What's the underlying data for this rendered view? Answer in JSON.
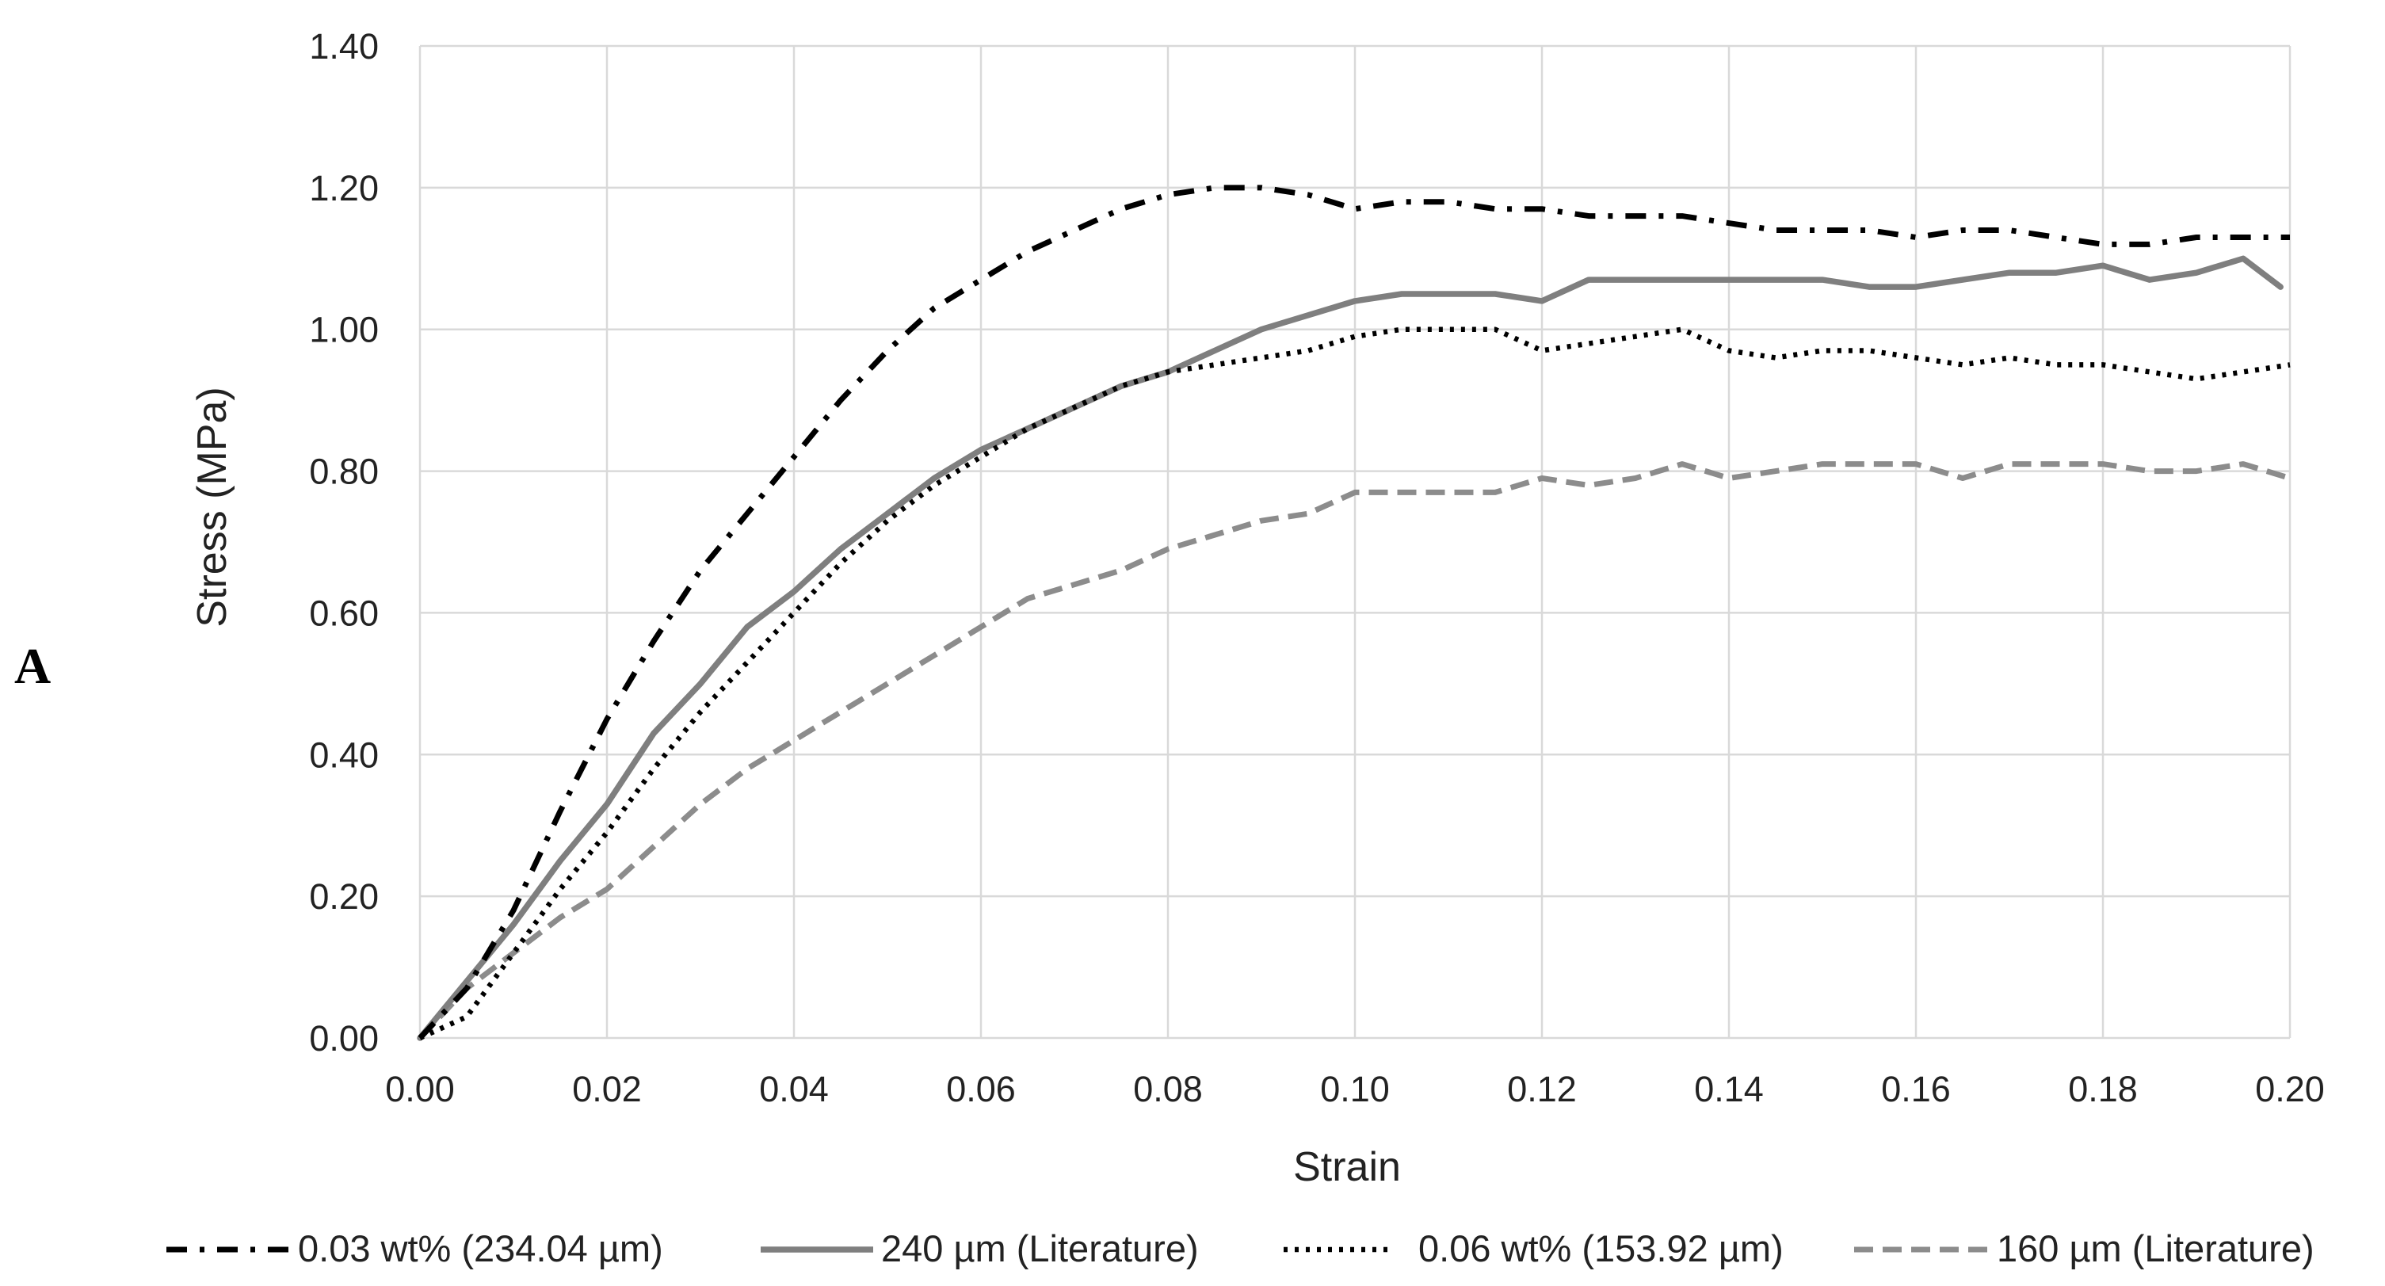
{
  "panel_label": "A",
  "chart_data": {
    "type": "line",
    "title": "",
    "xlabel": "Strain",
    "ylabel": "Stress (MPa)",
    "xlim": [
      0,
      0.2
    ],
    "ylim": [
      0,
      1.4
    ],
    "xticks": [
      "0.00",
      "0.02",
      "0.04",
      "0.06",
      "0.08",
      "0.10",
      "0.12",
      "0.14",
      "0.16",
      "0.18",
      "0.20"
    ],
    "yticks": [
      "0.00",
      "0.20",
      "0.40",
      "0.60",
      "0.80",
      "1.00",
      "1.20",
      "1.40"
    ],
    "grid": true,
    "legend_position": "bottom",
    "series": [
      {
        "name": "0.03 wt% (234.04 µm)",
        "style": "dash-dot",
        "color": "#000000",
        "x": [
          0,
          0.005,
          0.01,
          0.015,
          0.02,
          0.025,
          0.03,
          0.035,
          0.04,
          0.045,
          0.05,
          0.055,
          0.06,
          0.065,
          0.07,
          0.075,
          0.08,
          0.085,
          0.09,
          0.095,
          0.1,
          0.105,
          0.11,
          0.115,
          0.12,
          0.125,
          0.13,
          0.135,
          0.14,
          0.145,
          0.15,
          0.155,
          0.16,
          0.165,
          0.17,
          0.175,
          0.18,
          0.185,
          0.19,
          0.195,
          0.2
        ],
        "y": [
          0,
          0.07,
          0.18,
          0.32,
          0.45,
          0.56,
          0.66,
          0.74,
          0.82,
          0.9,
          0.97,
          1.03,
          1.07,
          1.11,
          1.14,
          1.17,
          1.19,
          1.2,
          1.2,
          1.19,
          1.17,
          1.18,
          1.18,
          1.17,
          1.17,
          1.16,
          1.16,
          1.16,
          1.15,
          1.14,
          1.14,
          1.14,
          1.13,
          1.14,
          1.14,
          1.13,
          1.12,
          1.12,
          1.13,
          1.13,
          1.13
        ]
      },
      {
        "name": "240 µm (Literature)",
        "style": "solid",
        "color": "#7f7f7f",
        "x": [
          0,
          0.005,
          0.01,
          0.015,
          0.02,
          0.025,
          0.03,
          0.035,
          0.04,
          0.045,
          0.05,
          0.055,
          0.06,
          0.065,
          0.07,
          0.075,
          0.08,
          0.085,
          0.09,
          0.095,
          0.1,
          0.105,
          0.11,
          0.115,
          0.12,
          0.125,
          0.13,
          0.135,
          0.14,
          0.145,
          0.15,
          0.155,
          0.16,
          0.165,
          0.17,
          0.175,
          0.18,
          0.185,
          0.19,
          0.195,
          0.199
        ],
        "y": [
          0,
          0.08,
          0.16,
          0.25,
          0.33,
          0.43,
          0.5,
          0.58,
          0.63,
          0.69,
          0.74,
          0.79,
          0.83,
          0.86,
          0.89,
          0.92,
          0.94,
          0.97,
          1.0,
          1.02,
          1.04,
          1.05,
          1.05,
          1.05,
          1.04,
          1.07,
          1.07,
          1.07,
          1.07,
          1.07,
          1.07,
          1.06,
          1.06,
          1.07,
          1.08,
          1.08,
          1.09,
          1.07,
          1.08,
          1.1,
          1.06
        ]
      },
      {
        "name": "0.06 wt% (153.92 µm)",
        "style": "dotted",
        "color": "#000000",
        "x": [
          0,
          0.005,
          0.01,
          0.015,
          0.02,
          0.025,
          0.03,
          0.035,
          0.04,
          0.045,
          0.05,
          0.055,
          0.06,
          0.065,
          0.07,
          0.075,
          0.08,
          0.085,
          0.09,
          0.095,
          0.1,
          0.105,
          0.11,
          0.115,
          0.12,
          0.125,
          0.13,
          0.135,
          0.14,
          0.145,
          0.15,
          0.155,
          0.16,
          0.165,
          0.17,
          0.175,
          0.18,
          0.185,
          0.19,
          0.195,
          0.2
        ],
        "y": [
          0,
          0.03,
          0.12,
          0.21,
          0.29,
          0.38,
          0.46,
          0.53,
          0.6,
          0.67,
          0.73,
          0.78,
          0.82,
          0.86,
          0.89,
          0.92,
          0.94,
          0.95,
          0.96,
          0.97,
          0.99,
          1.0,
          1.0,
          1.0,
          0.97,
          0.98,
          0.99,
          1.0,
          0.97,
          0.96,
          0.97,
          0.97,
          0.96,
          0.95,
          0.96,
          0.95,
          0.95,
          0.94,
          0.93,
          0.94,
          0.95
        ]
      },
      {
        "name": "160 µm (Literature)",
        "style": "dashed",
        "color": "#8c8c8c",
        "x": [
          0,
          0.005,
          0.01,
          0.015,
          0.02,
          0.025,
          0.03,
          0.035,
          0.04,
          0.045,
          0.05,
          0.055,
          0.06,
          0.065,
          0.07,
          0.075,
          0.08,
          0.085,
          0.09,
          0.095,
          0.1,
          0.105,
          0.11,
          0.115,
          0.12,
          0.125,
          0.13,
          0.135,
          0.14,
          0.145,
          0.15,
          0.155,
          0.16,
          0.165,
          0.17,
          0.175,
          0.18,
          0.185,
          0.19,
          0.195,
          0.2
        ],
        "y": [
          0,
          0.07,
          0.12,
          0.17,
          0.21,
          0.27,
          0.33,
          0.38,
          0.42,
          0.46,
          0.5,
          0.54,
          0.58,
          0.62,
          0.64,
          0.66,
          0.69,
          0.71,
          0.73,
          0.74,
          0.77,
          0.77,
          0.77,
          0.77,
          0.79,
          0.78,
          0.79,
          0.81,
          0.79,
          0.8,
          0.81,
          0.81,
          0.81,
          0.79,
          0.81,
          0.81,
          0.81,
          0.8,
          0.8,
          0.81,
          0.79
        ]
      }
    ]
  }
}
